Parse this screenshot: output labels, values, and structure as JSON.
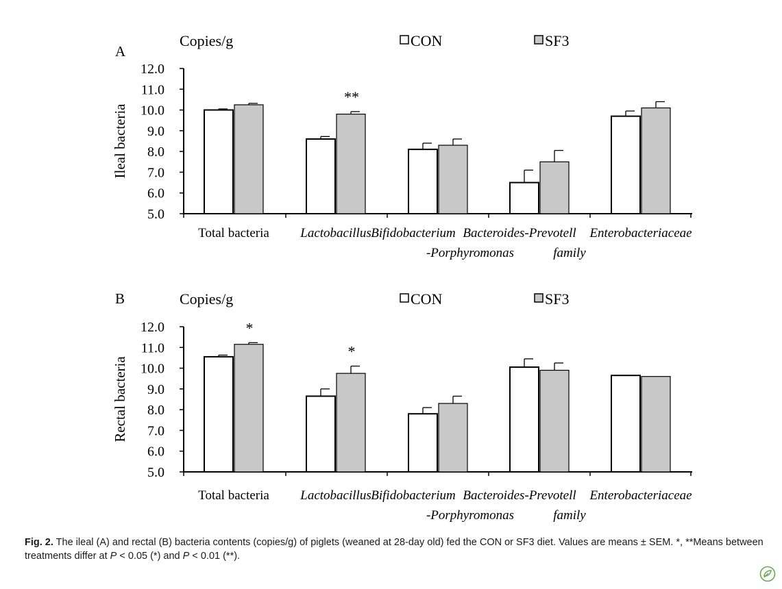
{
  "chart_data": [
    {
      "type": "bar",
      "panel_label": "A",
      "unit_label": "Copies/g",
      "ylabel": "Ileal bacteria",
      "ylim": [
        5.0,
        12.0
      ],
      "yticks": [
        "12.0",
        "11.0",
        "10.0",
        "9.0",
        "8.0",
        "7.0",
        "6.0",
        "5.0"
      ],
      "categories": [
        {
          "line1": "Total bacteria",
          "line2": "",
          "italic": false
        },
        {
          "line1": "Lactobacillus",
          "line2": "",
          "italic": true
        },
        {
          "line1": "Bifidobacterium",
          "line2": "-Porphyromonas",
          "italic": true
        },
        {
          "line1": "Bacteroides-Prevotell",
          "line2": "family",
          "italic": true
        },
        {
          "line1": "Enterobacteriaceae",
          "line2": "",
          "italic": true
        }
      ],
      "series": [
        {
          "name": "CON",
          "color": "#ffffff",
          "values": [
            10.0,
            8.6,
            8.1,
            6.5,
            9.7
          ],
          "errors": [
            0.05,
            0.12,
            0.3,
            0.6,
            0.25
          ]
        },
        {
          "name": "SF3",
          "color": "#c8c8c8",
          "values": [
            10.25,
            9.8,
            8.3,
            7.5,
            10.1
          ],
          "errors": [
            0.07,
            0.12,
            0.3,
            0.55,
            0.3
          ]
        }
      ],
      "annotations": [
        {
          "category": 1,
          "series": 1,
          "text": "**"
        }
      ],
      "legend": "top"
    },
    {
      "type": "bar",
      "panel_label": "B",
      "unit_label": "Copies/g",
      "ylabel": "Rectal bacteria",
      "ylim": [
        5.0,
        12.0
      ],
      "yticks": [
        "12.0",
        "11.0",
        "10.0",
        "9.0",
        "8.0",
        "7.0",
        "6.0",
        "5.0"
      ],
      "categories": [
        {
          "line1": "Total bacteria",
          "line2": "",
          "italic": false
        },
        {
          "line1": "Lactobacillus",
          "line2": "",
          "italic": true
        },
        {
          "line1": "Bifidobacterium",
          "line2": "-Porphyromonas",
          "italic": true
        },
        {
          "line1": "Bacteroides-Prevotell",
          "line2": "family",
          "italic": true
        },
        {
          "line1": "Enterobacteriaceae",
          "line2": "",
          "italic": true
        }
      ],
      "series": [
        {
          "name": "CON",
          "color": "#ffffff",
          "values": [
            10.55,
            8.65,
            7.8,
            10.05,
            9.65
          ],
          "errors": [
            0.08,
            0.35,
            0.3,
            0.4,
            0.0
          ]
        },
        {
          "name": "SF3",
          "color": "#c8c8c8",
          "values": [
            11.15,
            9.75,
            8.3,
            9.9,
            9.6
          ],
          "errors": [
            0.08,
            0.35,
            0.35,
            0.35,
            0.0
          ]
        }
      ],
      "annotations": [
        {
          "category": 0,
          "series": 1,
          "text": "*"
        },
        {
          "category": 1,
          "series": 1,
          "text": "*"
        }
      ],
      "legend": "top"
    }
  ],
  "caption": {
    "fig_label": "Fig. 2.",
    "text_part1": " The ileal (A) and rectal (B) bacteria contents (copies/g) of piglets (weaned at 28-day old) fed the CON or SF3 diet. Values are means ± SEM. *, **Means between treatments differ at ",
    "p_symbol": "P",
    "text_part2": " < 0.05 (*) and ",
    "p_symbol2": "P",
    "text_part3": " < 0.01 (**)."
  },
  "badge_icon": "elsevier-leaf-icon"
}
